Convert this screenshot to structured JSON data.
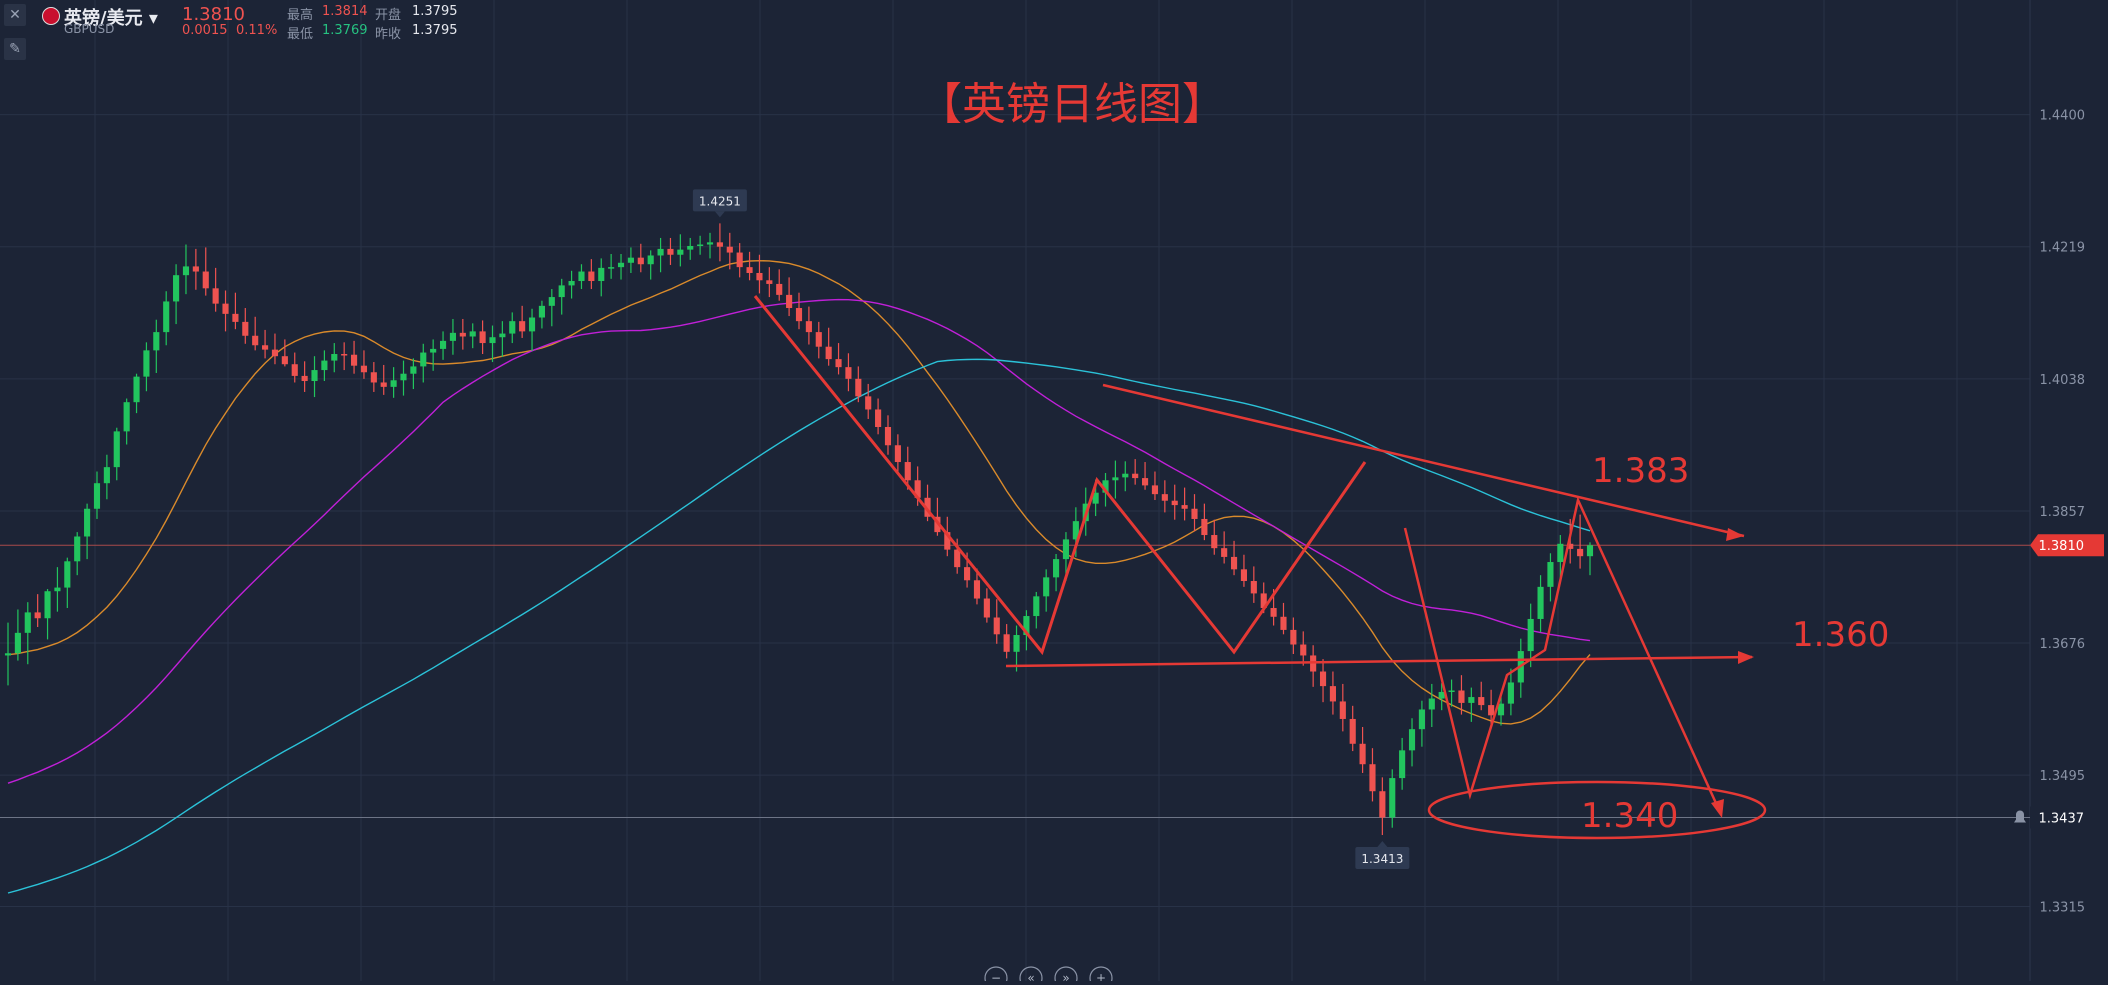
{
  "header": {
    "symbol": "英镑/美元",
    "dropdown_glyph": "▾",
    "code": "GBPUSD",
    "last": "1.3810",
    "change": "0.0015",
    "change_pct": "0.11%",
    "high_label": "最高",
    "high": "1.3814",
    "low_label": "最低",
    "low": "1.3769",
    "open_label": "开盘",
    "open": "1.3795",
    "prev_close_label": "昨收",
    "prev_close": "1.3795"
  },
  "toolbar": {
    "close_icon": "✕",
    "draw_icon": "✎"
  },
  "bottom_controls": [
    "−",
    "«",
    "»",
    "+"
  ],
  "colors": {
    "background": "#1c2436",
    "up": "#26a69a",
    "down": "#ef5350",
    "annotation": "#e53935"
  },
  "chart_data": {
    "type": "candlestick",
    "title": "【英镑日线图】",
    "ylim": [
      1.3213,
      1.4557
    ],
    "y_ticks": [
      "1.4400",
      "1.4219",
      "1.4038",
      "1.3857",
      "1.3676",
      "1.3495",
      "1.3315"
    ],
    "price_markers": [
      {
        "label": "1.3810",
        "value": 1.381,
        "style": "current"
      },
      {
        "label": "1.3437",
        "value": 1.3437,
        "style": "alert"
      }
    ],
    "extreme_labels": [
      {
        "label": "1.4251",
        "value": 1.4251,
        "index": 72
      },
      {
        "label": "1.3413",
        "value": 1.3413,
        "index": 139
      }
    ],
    "annotations": [
      "1.383",
      "1.360",
      "1.340"
    ],
    "ohlc": [
      [
        1.3659,
        1.3704,
        1.3618,
        1.3662
      ],
      [
        1.3662,
        1.3722,
        1.3652,
        1.369
      ],
      [
        1.369,
        1.3732,
        1.3647,
        1.3718
      ],
      [
        1.3718,
        1.3743,
        1.3698,
        1.371
      ],
      [
        1.371,
        1.375,
        1.3681,
        1.3747
      ],
      [
        1.3747,
        1.378,
        1.3719,
        1.3752
      ],
      [
        1.3752,
        1.3793,
        1.3724,
        1.3788
      ],
      [
        1.3788,
        1.3828,
        1.3769,
        1.3822
      ],
      [
        1.3822,
        1.3867,
        1.3791,
        1.386
      ],
      [
        1.386,
        1.3911,
        1.3846,
        1.3895
      ],
      [
        1.3895,
        1.3934,
        1.3873,
        1.3917
      ],
      [
        1.3917,
        1.3971,
        1.3899,
        1.3966
      ],
      [
        1.3966,
        1.4011,
        1.3948,
        1.4006
      ],
      [
        1.4006,
        1.4045,
        1.3991,
        1.4041
      ],
      [
        1.4041,
        1.4088,
        1.4021,
        1.4077
      ],
      [
        1.4077,
        1.4119,
        1.4046,
        1.4102
      ],
      [
        1.4102,
        1.4158,
        1.4084,
        1.4144
      ],
      [
        1.4144,
        1.4195,
        1.4113,
        1.418
      ],
      [
        1.418,
        1.4222,
        1.4154,
        1.4192
      ],
      [
        1.4192,
        1.4216,
        1.416,
        1.4185
      ],
      [
        1.4185,
        1.4218,
        1.4152,
        1.4162
      ],
      [
        1.4162,
        1.419,
        1.413,
        1.4141
      ],
      [
        1.4141,
        1.4159,
        1.4103,
        1.4127
      ],
      [
        1.4127,
        1.4156,
        1.4106,
        1.4116
      ],
      [
        1.4116,
        1.4135,
        1.4086,
        1.4097
      ],
      [
        1.4097,
        1.4123,
        1.4077,
        1.4084
      ],
      [
        1.4084,
        1.4105,
        1.4066,
        1.4078
      ],
      [
        1.4078,
        1.41,
        1.4058,
        1.4069
      ],
      [
        1.4069,
        1.4092,
        1.4055,
        1.4058
      ],
      [
        1.4058,
        1.4074,
        1.4033,
        1.4042
      ],
      [
        1.4042,
        1.4062,
        1.402,
        1.4035
      ],
      [
        1.4035,
        1.4069,
        1.4013,
        1.405
      ],
      [
        1.405,
        1.4077,
        1.4035,
        1.4063
      ],
      [
        1.4063,
        1.4087,
        1.4047,
        1.4072
      ],
      [
        1.4072,
        1.4088,
        1.405,
        1.4071
      ],
      [
        1.4071,
        1.409,
        1.4045,
        1.4056
      ],
      [
        1.4056,
        1.4077,
        1.4038,
        1.4047
      ],
      [
        1.4047,
        1.4061,
        1.402,
        1.4033
      ],
      [
        1.4033,
        1.4057,
        1.4016,
        1.4027
      ],
      [
        1.4027,
        1.4054,
        1.4012,
        1.4036
      ],
      [
        1.4036,
        1.4063,
        1.4015,
        1.4045
      ],
      [
        1.4045,
        1.4066,
        1.4024,
        1.4055
      ],
      [
        1.4055,
        1.4086,
        1.4033,
        1.4074
      ],
      [
        1.4074,
        1.4092,
        1.4049,
        1.4079
      ],
      [
        1.4079,
        1.4103,
        1.4064,
        1.409
      ],
      [
        1.409,
        1.412,
        1.4071,
        1.4101
      ],
      [
        1.4101,
        1.412,
        1.4078,
        1.4096
      ],
      [
        1.4096,
        1.4114,
        1.408,
        1.4103
      ],
      [
        1.4103,
        1.4118,
        1.4072,
        1.4087
      ],
      [
        1.4087,
        1.4111,
        1.4061,
        1.4095
      ],
      [
        1.4095,
        1.4117,
        1.4068,
        1.41
      ],
      [
        1.41,
        1.4129,
        1.4087,
        1.4117
      ],
      [
        1.4117,
        1.4138,
        1.4094,
        1.4103
      ],
      [
        1.4103,
        1.4134,
        1.4076,
        1.4122
      ],
      [
        1.4122,
        1.4145,
        1.4107,
        1.4138
      ],
      [
        1.4138,
        1.4161,
        1.411,
        1.415
      ],
      [
        1.415,
        1.4175,
        1.4126,
        1.4166
      ],
      [
        1.4166,
        1.4186,
        1.4148,
        1.4172
      ],
      [
        1.4172,
        1.4195,
        1.4161,
        1.4185
      ],
      [
        1.4185,
        1.4202,
        1.4161,
        1.4172
      ],
      [
        1.4172,
        1.4203,
        1.4151,
        1.419
      ],
      [
        1.419,
        1.4209,
        1.4175,
        1.4191
      ],
      [
        1.4191,
        1.4209,
        1.4174,
        1.4197
      ],
      [
        1.4197,
        1.4218,
        1.4183,
        1.4204
      ],
      [
        1.4204,
        1.4223,
        1.4184,
        1.4195
      ],
      [
        1.4195,
        1.4214,
        1.4174,
        1.4207
      ],
      [
        1.4207,
        1.4231,
        1.4184,
        1.4216
      ],
      [
        1.4216,
        1.4231,
        1.4194,
        1.4208
      ],
      [
        1.4208,
        1.4236,
        1.4192,
        1.4215
      ],
      [
        1.4215,
        1.4231,
        1.4201,
        1.422
      ],
      [
        1.422,
        1.4234,
        1.4208,
        1.4222
      ],
      [
        1.4222,
        1.4238,
        1.4203,
        1.4225
      ],
      [
        1.4225,
        1.4251,
        1.4199,
        1.4219
      ],
      [
        1.4219,
        1.4238,
        1.4188,
        1.4211
      ],
      [
        1.4211,
        1.4224,
        1.4177,
        1.4191
      ],
      [
        1.4191,
        1.4212,
        1.4173,
        1.4183
      ],
      [
        1.4183,
        1.4208,
        1.4155,
        1.4173
      ],
      [
        1.4173,
        1.4191,
        1.415,
        1.4168
      ],
      [
        1.4168,
        1.4188,
        1.4145,
        1.4153
      ],
      [
        1.4153,
        1.4177,
        1.4124,
        1.4135
      ],
      [
        1.4135,
        1.4156,
        1.4106,
        1.4117
      ],
      [
        1.4117,
        1.4137,
        1.4085,
        1.4102
      ],
      [
        1.4102,
        1.4116,
        1.4066,
        1.4082
      ],
      [
        1.4082,
        1.4108,
        1.4056,
        1.4065
      ],
      [
        1.4065,
        1.4087,
        1.4044,
        1.4054
      ],
      [
        1.4054,
        1.4073,
        1.4021,
        1.4038
      ],
      [
        1.4038,
        1.4055,
        1.4006,
        1.4014
      ],
      [
        1.4014,
        1.4031,
        1.3983,
        1.3996
      ],
      [
        1.3996,
        1.4011,
        1.3962,
        1.3972
      ],
      [
        1.3972,
        1.3988,
        1.3934,
        1.3947
      ],
      [
        1.3947,
        1.3962,
        1.3908,
        1.3924
      ],
      [
        1.3924,
        1.3945,
        1.3886,
        1.3899
      ],
      [
        1.3899,
        1.3918,
        1.3864,
        1.3875
      ],
      [
        1.3875,
        1.3893,
        1.3843,
        1.3849
      ],
      [
        1.3849,
        1.3875,
        1.3823,
        1.3828
      ],
      [
        1.3828,
        1.3849,
        1.3795,
        1.3804
      ],
      [
        1.3804,
        1.3819,
        1.3771,
        1.378
      ],
      [
        1.378,
        1.38,
        1.3752,
        1.3762
      ],
      [
        1.3762,
        1.3778,
        1.3729,
        1.3737
      ],
      [
        1.3737,
        1.3751,
        1.3704,
        1.3711
      ],
      [
        1.3711,
        1.3736,
        1.3675,
        1.3688
      ],
      [
        1.3688,
        1.3702,
        1.3655,
        1.3664
      ],
      [
        1.3664,
        1.37,
        1.3637,
        1.3687
      ],
      [
        1.3687,
        1.3721,
        1.3666,
        1.3713
      ],
      [
        1.3713,
        1.3746,
        1.3696,
        1.374
      ],
      [
        1.374,
        1.3777,
        1.3719,
        1.3766
      ],
      [
        1.3766,
        1.3798,
        1.3747,
        1.3791
      ],
      [
        1.3791,
        1.3828,
        1.3761,
        1.3818
      ],
      [
        1.3818,
        1.3862,
        1.3794,
        1.3843
      ],
      [
        1.3843,
        1.3889,
        1.3823,
        1.3867
      ],
      [
        1.3867,
        1.39,
        1.385,
        1.3882
      ],
      [
        1.3882,
        1.3909,
        1.3863,
        1.3899
      ],
      [
        1.3899,
        1.3926,
        1.3874,
        1.3903
      ],
      [
        1.3903,
        1.3925,
        1.3884,
        1.3908
      ],
      [
        1.3908,
        1.3928,
        1.3893,
        1.3902
      ],
      [
        1.3902,
        1.3924,
        1.3886,
        1.3892
      ],
      [
        1.3892,
        1.3911,
        1.3872,
        1.388
      ],
      [
        1.388,
        1.3899,
        1.3855,
        1.3871
      ],
      [
        1.3871,
        1.3893,
        1.3845,
        1.3865
      ],
      [
        1.3865,
        1.3889,
        1.3844,
        1.386
      ],
      [
        1.386,
        1.388,
        1.3829,
        1.3846
      ],
      [
        1.3846,
        1.3867,
        1.3817,
        1.3824
      ],
      [
        1.3824,
        1.3845,
        1.3797,
        1.3806
      ],
      [
        1.3806,
        1.3829,
        1.3785,
        1.3794
      ],
      [
        1.3794,
        1.3816,
        1.3769,
        1.3777
      ],
      [
        1.3777,
        1.3797,
        1.3753,
        1.3761
      ],
      [
        1.3761,
        1.3781,
        1.3731,
        1.3744
      ],
      [
        1.3744,
        1.3759,
        1.3717,
        1.3724
      ],
      [
        1.3724,
        1.375,
        1.37,
        1.3712
      ],
      [
        1.3712,
        1.3731,
        1.3688,
        1.3694
      ],
      [
        1.3694,
        1.3711,
        1.3661,
        1.3674
      ],
      [
        1.3674,
        1.3692,
        1.3645,
        1.3659
      ],
      [
        1.3659,
        1.3673,
        1.3616,
        1.3637
      ],
      [
        1.3637,
        1.3654,
        1.3595,
        1.3617
      ],
      [
        1.3617,
        1.3637,
        1.3578,
        1.3596
      ],
      [
        1.3596,
        1.362,
        1.3555,
        1.3572
      ],
      [
        1.3572,
        1.359,
        1.3528,
        1.3538
      ],
      [
        1.3538,
        1.3561,
        1.3498,
        1.351
      ],
      [
        1.351,
        1.3532,
        1.3459,
        1.3473
      ],
      [
        1.3473,
        1.3492,
        1.3413,
        1.3437
      ],
      [
        1.3437,
        1.3503,
        1.3423,
        1.3491
      ],
      [
        1.3491,
        1.3546,
        1.3475,
        1.3529
      ],
      [
        1.3529,
        1.3573,
        1.3507,
        1.3558
      ],
      [
        1.3558,
        1.3597,
        1.3534,
        1.3585
      ],
      [
        1.3585,
        1.362,
        1.3561,
        1.36
      ],
      [
        1.36,
        1.3621,
        1.3584,
        1.3609
      ],
      [
        1.3609,
        1.3626,
        1.3589,
        1.3611
      ],
      [
        1.3611,
        1.3632,
        1.3578,
        1.3594
      ],
      [
        1.3594,
        1.3615,
        1.3568,
        1.3602
      ],
      [
        1.3602,
        1.3623,
        1.3584,
        1.3591
      ],
      [
        1.3591,
        1.3612,
        1.3563,
        1.3577
      ],
      [
        1.3577,
        1.3606,
        1.3563,
        1.3593
      ],
      [
        1.3593,
        1.3641,
        1.3577,
        1.3622
      ],
      [
        1.3622,
        1.3682,
        1.3601,
        1.3665
      ],
      [
        1.3665,
        1.373,
        1.3643,
        1.3709
      ],
      [
        1.3709,
        1.3769,
        1.3691,
        1.3753
      ],
      [
        1.3753,
        1.3799,
        1.3733,
        1.3787
      ],
      [
        1.3787,
        1.3824,
        1.3758,
        1.3812
      ],
      [
        1.3812,
        1.3846,
        1.3785,
        1.3805
      ],
      [
        1.3805,
        1.3852,
        1.3778,
        1.3795
      ],
      [
        1.3795,
        1.3814,
        1.3769,
        1.381
      ]
    ]
  }
}
